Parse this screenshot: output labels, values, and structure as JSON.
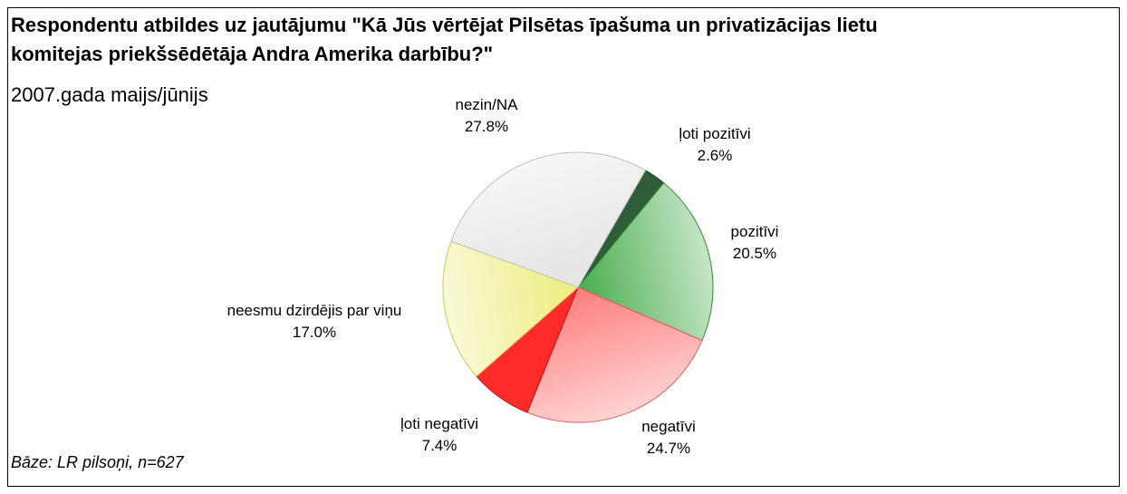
{
  "chart_data": {
    "type": "pie",
    "title": "Respondentu atbildes uz jautājumu \"Kā Jūs vērtējat Pilsētas īpašuma un privatizācijas lietu komitejas priekšsēdētāja Andra Amerika darbību?\"",
    "subtitle": "2007.gada maijs/jūnijs",
    "note": "Bāze: LR pilsoņi, n=627",
    "categories": [
      "ļoti pozitīvi",
      "pozitīvi",
      "negatīvi",
      "ļoti negatīvi",
      "neesmu dzirdējis par viņu",
      "nezin/NA"
    ],
    "values": [
      2.6,
      20.5,
      24.7,
      7.4,
      17.0,
      27.8
    ],
    "value_labels": [
      "2.6%",
      "20.5%",
      "24.7%",
      "7.4%",
      "17.0%",
      "27.8%"
    ],
    "colors": [
      "#2f5d3a",
      "#4caf50",
      "#ff8080",
      "#ff2a2a",
      "#eded80",
      "#e4e4e4"
    ]
  }
}
